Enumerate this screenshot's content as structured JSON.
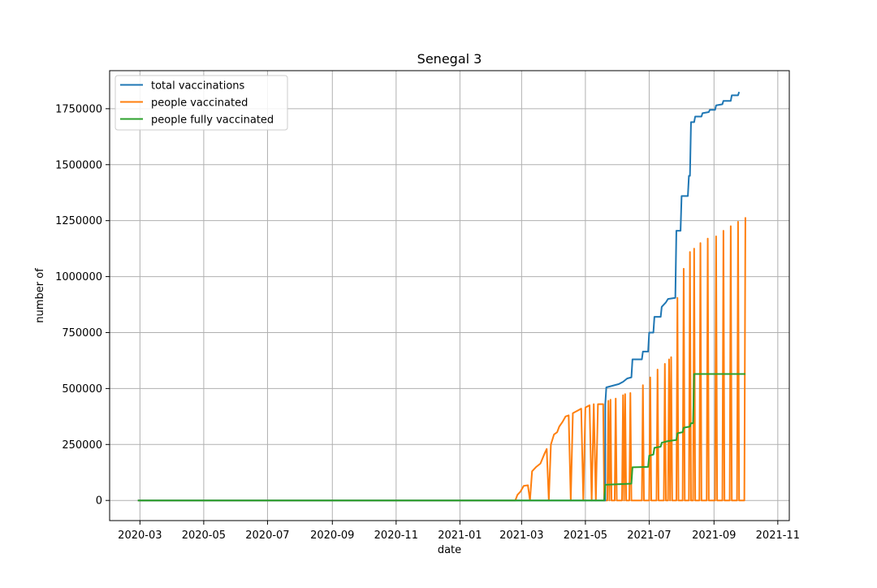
{
  "chart_data": {
    "type": "line",
    "title": "Senegal 3",
    "xlabel": "date",
    "ylabel": "number of",
    "xlim": [
      "2020-02-01",
      "2021-11-12"
    ],
    "ylim": [
      -90000,
      1920000
    ],
    "x_ticks": [
      "2020-03-01",
      "2020-05-01",
      "2020-07-01",
      "2020-09-01",
      "2020-11-01",
      "2021-01-01",
      "2021-03-01",
      "2021-05-01",
      "2021-07-01",
      "2021-09-01",
      "2021-11-01"
    ],
    "x_tick_labels": [
      "2020-03",
      "2020-05",
      "2020-07",
      "2020-09",
      "2020-11",
      "2021-01",
      "2021-03",
      "2021-05",
      "2021-07",
      "2021-09",
      "2021-11"
    ],
    "y_ticks": [
      0,
      250000,
      500000,
      750000,
      1000000,
      1250000,
      1500000,
      1750000
    ],
    "y_tick_labels": [
      "0",
      "250000",
      "500000",
      "750000",
      "1000000",
      "1250000",
      "1500000",
      "1750000"
    ],
    "grid": true,
    "legend_position": "upper-left",
    "series": [
      {
        "name": "total vaccinations",
        "color": "#1f77b4",
        "points": [
          [
            "2020-02-28",
            0
          ],
          [
            "2021-05-20",
            0
          ],
          [
            "2021-05-20",
            430000
          ],
          [
            "2021-05-21",
            505000
          ],
          [
            "2021-05-25",
            510000
          ],
          [
            "2021-05-29",
            515000
          ],
          [
            "2021-06-02",
            520000
          ],
          [
            "2021-06-06",
            530000
          ],
          [
            "2021-06-10",
            545000
          ],
          [
            "2021-06-14",
            550000
          ],
          [
            "2021-06-15",
            630000
          ],
          [
            "2021-06-24",
            630000
          ],
          [
            "2021-06-25",
            665000
          ],
          [
            "2021-06-30",
            665000
          ],
          [
            "2021-07-01",
            750000
          ],
          [
            "2021-07-05",
            750000
          ],
          [
            "2021-07-06",
            820000
          ],
          [
            "2021-07-12",
            820000
          ],
          [
            "2021-07-13",
            865000
          ],
          [
            "2021-07-17",
            885000
          ],
          [
            "2021-07-19",
            900000
          ],
          [
            "2021-07-26",
            905000
          ],
          [
            "2021-07-27",
            1205000
          ],
          [
            "2021-07-31",
            1205000
          ],
          [
            "2021-08-01",
            1360000
          ],
          [
            "2021-08-07",
            1360000
          ],
          [
            "2021-08-08",
            1450000
          ],
          [
            "2021-08-09",
            1450000
          ],
          [
            "2021-08-10",
            1690000
          ],
          [
            "2021-08-13",
            1690000
          ],
          [
            "2021-08-14",
            1715000
          ],
          [
            "2021-08-20",
            1715000
          ],
          [
            "2021-08-21",
            1730000
          ],
          [
            "2021-08-27",
            1735000
          ],
          [
            "2021-08-28",
            1745000
          ],
          [
            "2021-09-02",
            1745000
          ],
          [
            "2021-09-03",
            1765000
          ],
          [
            "2021-09-09",
            1770000
          ],
          [
            "2021-09-10",
            1785000
          ],
          [
            "2021-09-17",
            1785000
          ],
          [
            "2021-09-18",
            1810000
          ],
          [
            "2021-09-24",
            1810000
          ],
          [
            "2021-09-25",
            1825000
          ]
        ]
      },
      {
        "name": "people vaccinated",
        "color": "#ff7f0e",
        "points": [
          [
            "2020-02-28",
            0
          ],
          [
            "2021-02-23",
            0
          ],
          [
            "2021-02-25",
            25000
          ],
          [
            "2021-02-28",
            40000
          ],
          [
            "2021-03-03",
            65000
          ],
          [
            "2021-03-07",
            68000
          ],
          [
            "2021-03-09",
            0
          ],
          [
            "2021-03-11",
            130000
          ],
          [
            "2021-03-15",
            150000
          ],
          [
            "2021-03-19",
            165000
          ],
          [
            "2021-03-23",
            210000
          ],
          [
            "2021-03-25",
            230000
          ],
          [
            "2021-03-27",
            0
          ],
          [
            "2021-03-29",
            250000
          ],
          [
            "2021-04-01",
            295000
          ],
          [
            "2021-04-04",
            305000
          ],
          [
            "2021-04-06",
            330000
          ],
          [
            "2021-04-09",
            350000
          ],
          [
            "2021-04-12",
            375000
          ],
          [
            "2021-04-15",
            380000
          ],
          [
            "2021-04-17",
            0
          ],
          [
            "2021-04-19",
            390000
          ],
          [
            "2021-04-23",
            400000
          ],
          [
            "2021-04-27",
            410000
          ],
          [
            "2021-04-29",
            0
          ],
          [
            "2021-05-01",
            415000
          ],
          [
            "2021-05-05",
            425000
          ],
          [
            "2021-05-07",
            0
          ],
          [
            "2021-05-09",
            430000
          ],
          [
            "2021-05-11",
            0
          ],
          [
            "2021-05-13",
            430000
          ],
          [
            "2021-05-18",
            430000
          ],
          [
            "2021-05-19",
            0
          ],
          [
            "2021-05-22",
            0
          ],
          [
            "2021-05-23",
            445000
          ],
          [
            "2021-05-24",
            0
          ],
          [
            "2021-05-25",
            450000
          ],
          [
            "2021-05-26",
            0
          ],
          [
            "2021-05-29",
            0
          ],
          [
            "2021-05-30",
            455000
          ],
          [
            "2021-05-31",
            0
          ],
          [
            "2021-06-05",
            0
          ],
          [
            "2021-06-06",
            470000
          ],
          [
            "2021-06-07",
            0
          ],
          [
            "2021-06-08",
            475000
          ],
          [
            "2021-06-09",
            0
          ],
          [
            "2021-06-12",
            0
          ],
          [
            "2021-06-13",
            480000
          ],
          [
            "2021-06-14",
            0
          ],
          [
            "2021-06-24",
            0
          ],
          [
            "2021-06-25",
            515000
          ],
          [
            "2021-06-26",
            0
          ],
          [
            "2021-07-01",
            0
          ],
          [
            "2021-07-02",
            550000
          ],
          [
            "2021-07-03",
            0
          ],
          [
            "2021-07-08",
            0
          ],
          [
            "2021-07-09",
            585000
          ],
          [
            "2021-07-10",
            0
          ],
          [
            "2021-07-15",
            0
          ],
          [
            "2021-07-16",
            610000
          ],
          [
            "2021-07-17",
            0
          ],
          [
            "2021-07-19",
            0
          ],
          [
            "2021-07-20",
            630000
          ],
          [
            "2021-07-21",
            0
          ],
          [
            "2021-07-22",
            640000
          ],
          [
            "2021-07-23",
            0
          ],
          [
            "2021-07-27",
            0
          ],
          [
            "2021-07-28",
            905000
          ],
          [
            "2021-07-29",
            0
          ],
          [
            "2021-08-02",
            0
          ],
          [
            "2021-08-03",
            1035000
          ],
          [
            "2021-08-04",
            0
          ],
          [
            "2021-08-08",
            0
          ],
          [
            "2021-08-09",
            1110000
          ],
          [
            "2021-08-10",
            0
          ],
          [
            "2021-08-12",
            0
          ],
          [
            "2021-08-13",
            1125000
          ],
          [
            "2021-08-14",
            0
          ],
          [
            "2021-08-18",
            0
          ],
          [
            "2021-08-19",
            1150000
          ],
          [
            "2021-08-20",
            0
          ],
          [
            "2021-08-25",
            0
          ],
          [
            "2021-08-26",
            1170000
          ],
          [
            "2021-08-27",
            0
          ],
          [
            "2021-09-02",
            0
          ],
          [
            "2021-09-03",
            1180000
          ],
          [
            "2021-09-04",
            0
          ],
          [
            "2021-09-09",
            0
          ],
          [
            "2021-09-10",
            1205000
          ],
          [
            "2021-09-11",
            0
          ],
          [
            "2021-09-16",
            0
          ],
          [
            "2021-09-17",
            1225000
          ],
          [
            "2021-09-18",
            0
          ],
          [
            "2021-09-23",
            0
          ],
          [
            "2021-09-24",
            1245000
          ],
          [
            "2021-09-25",
            0
          ],
          [
            "2021-09-30",
            0
          ],
          [
            "2021-10-01",
            1265000
          ]
        ]
      },
      {
        "name": "people fully vaccinated",
        "color": "#2ca02c",
        "points": [
          [
            "2020-02-28",
            0
          ],
          [
            "2021-05-19",
            0
          ],
          [
            "2021-05-20",
            70000
          ],
          [
            "2021-06-14",
            75000
          ],
          [
            "2021-06-15",
            148000
          ],
          [
            "2021-06-30",
            150000
          ],
          [
            "2021-07-01",
            200000
          ],
          [
            "2021-07-05",
            205000
          ],
          [
            "2021-07-06",
            235000
          ],
          [
            "2021-07-12",
            240000
          ],
          [
            "2021-07-13",
            258000
          ],
          [
            "2021-07-19",
            265000
          ],
          [
            "2021-07-27",
            270000
          ],
          [
            "2021-07-28",
            300000
          ],
          [
            "2021-08-02",
            305000
          ],
          [
            "2021-08-03",
            325000
          ],
          [
            "2021-08-09",
            330000
          ],
          [
            "2021-08-10",
            345000
          ],
          [
            "2021-08-12",
            345000
          ],
          [
            "2021-08-13",
            565000
          ],
          [
            "2021-10-01",
            565000
          ]
        ]
      }
    ]
  }
}
